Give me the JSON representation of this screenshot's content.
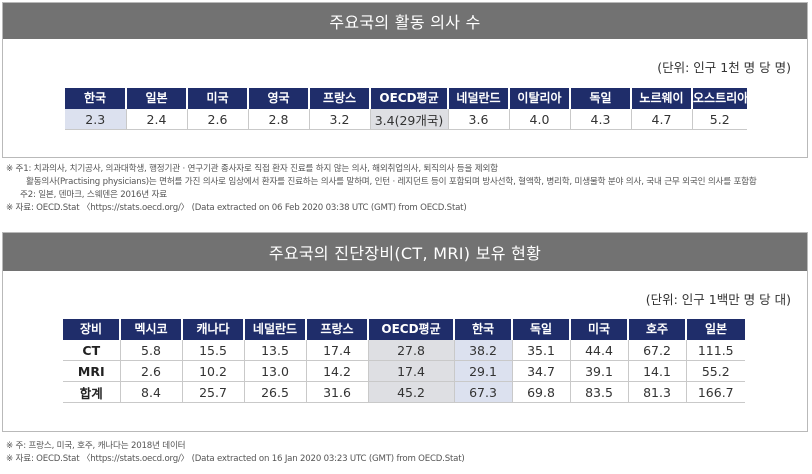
{
  "table1": {
    "title": "주요국의 활동 의사 수",
    "unit": "(단위: 인구 1천 명 당 명)",
    "headers": [
      "한국",
      "일본",
      "미국",
      "영국",
      "프랑스",
      "OECD평균",
      "네덜란드",
      "이탈리아",
      "독일",
      "노르웨이",
      "오스트리아"
    ],
    "values": [
      "2.3",
      "2.4",
      "2.6",
      "2.8",
      "3.2",
      "3.4(29개국)",
      "3.6",
      "4.0",
      "4.3",
      "4.7",
      "5.2"
    ]
  },
  "notes1": [
    "※ 주1: 치과의사, 치기공사, 의과대학생, 행정기관 · 연구기관 종사자로 직접 환자 진료를 하지 않는 의사, 해외취업의사, 퇴직의사 등을 제외함",
    "활동의사(Practising physicians)는 면허를 가진 의사로 임상에서 환자를 진료하는 의사를 말하며, 인턴 · 레지던트 등이 포함되며 방사선학, 혈액학, 병리학, 미생물학 분야 의사, 국내 근무 외국인 의사를 포함함",
    "주2: 일본, 덴마크, 스웨덴은 2016년 자료",
    "※ 자료: OECD.Stat 〈https://stats.oecd.org/〉 (Data extracted on 06 Feb 2020 03:38 UTC (GMT) from OECD.Stat)"
  ],
  "table2": {
    "title": "주요국의 진단장비(CT, MRI) 보유 현황",
    "unit": "(단위: 인구 1백만 명 당 대)",
    "headers": [
      "장비",
      "멕시코",
      "캐나다",
      "네덜란드",
      "프랑스",
      "OECD평균",
      "한국",
      "독일",
      "미국",
      "호주",
      "일본"
    ],
    "rows": [
      {
        "label": "CT",
        "values": [
          "5.8",
          "15.5",
          "13.5",
          "17.4",
          "27.8",
          "38.2",
          "35.1",
          "44.4",
          "67.2",
          "111.5"
        ]
      },
      {
        "label": "MRI",
        "values": [
          "2.6",
          "10.2",
          "13.0",
          "14.2",
          "17.4",
          "29.1",
          "34.7",
          "39.1",
          "14.1",
          "55.2"
        ]
      },
      {
        "label": "합계",
        "values": [
          "8.4",
          "25.7",
          "26.5",
          "31.6",
          "45.2",
          "67.3",
          "69.8",
          "83.5",
          "81.3",
          "166.7"
        ]
      }
    ]
  },
  "notes2": [
    "※ 주: 프랑스, 미국, 호주, 캐나다는 2018년 데이터",
    "※ 자료: OECD.Stat 〈https://stats.oecd.org/〉 (Data extracted on 16 Jan 2020 03:23 UTC (GMT) from OECD.Stat)"
  ]
}
